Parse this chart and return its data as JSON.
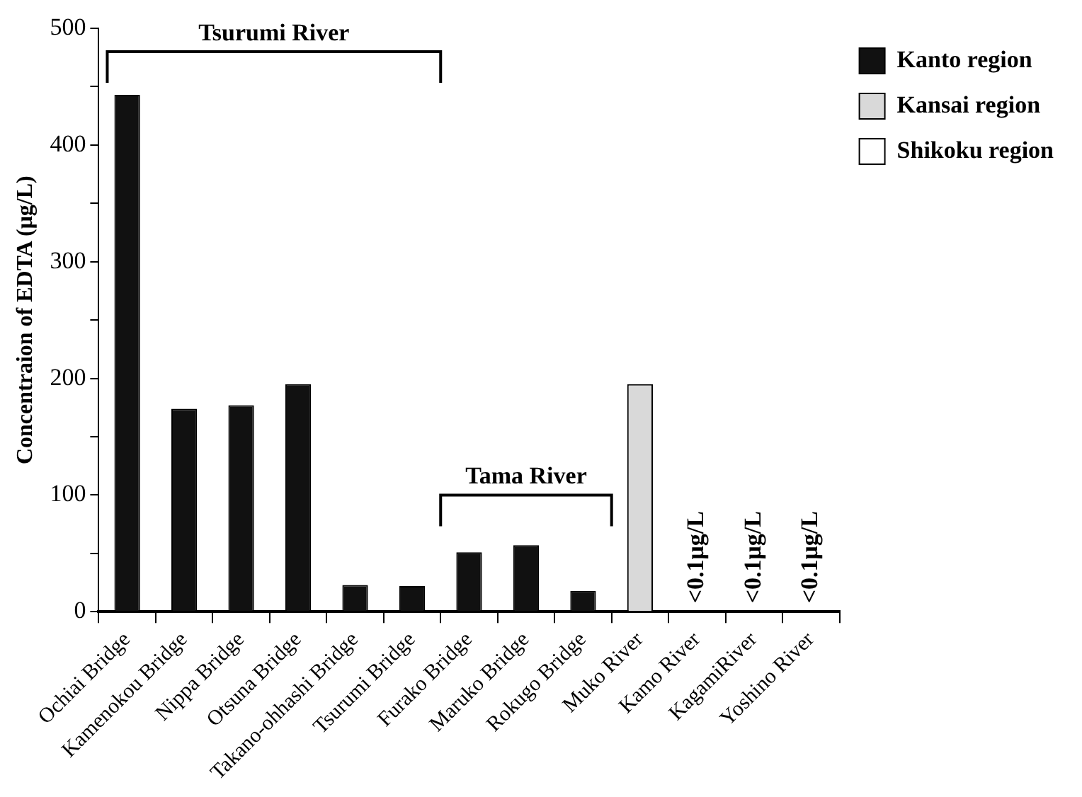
{
  "chart_data": {
    "type": "bar",
    "ylabel": "Concentraion of EDTA (μg/L)",
    "categories": [
      "Ochiai Bridge",
      "Kamenokou Bridge",
      "Nippa Bridge",
      "Otsuna Bridge",
      "Takano-ohhashi Bridge",
      "Tsurumi Bridge",
      "Furako Bridge",
      "Maruko Bridge",
      "Rokugo Bridge",
      "Muko River",
      "Kamo River",
      "KagamiRiver",
      "Yoshino River"
    ],
    "series": [
      {
        "name": "Kanto region",
        "color": "#111111",
        "values": [
          443,
          174,
          177,
          195,
          23,
          22,
          51,
          57,
          18,
          null,
          null,
          null,
          null
        ]
      },
      {
        "name": "Kansai region",
        "color": "#d9d9d9",
        "values": [
          null,
          null,
          null,
          null,
          null,
          null,
          null,
          null,
          null,
          195,
          null,
          null,
          null
        ]
      },
      {
        "name": "Shikoku region",
        "color": "#ffffff",
        "values": [
          null,
          null,
          null,
          null,
          null,
          null,
          null,
          null,
          null,
          null,
          null,
          null,
          null
        ]
      }
    ],
    "ylim": [
      0,
      500
    ],
    "yticks": [
      0,
      {
        "value": 50,
        "label": null
      },
      100,
      {
        "value": 150,
        "label": null
      },
      200,
      {
        "value": 250,
        "label": null
      },
      300,
      {
        "value": 350,
        "label": null
      },
      400,
      {
        "value": 450,
        "label": null
      },
      500
    ],
    "grid": false,
    "legend": "top right",
    "annotations": [
      "Tsurumi River",
      "Tama River",
      "<0.1μg/L",
      "<0.1μg/L",
      "<0.1μg/L"
    ]
  }
}
